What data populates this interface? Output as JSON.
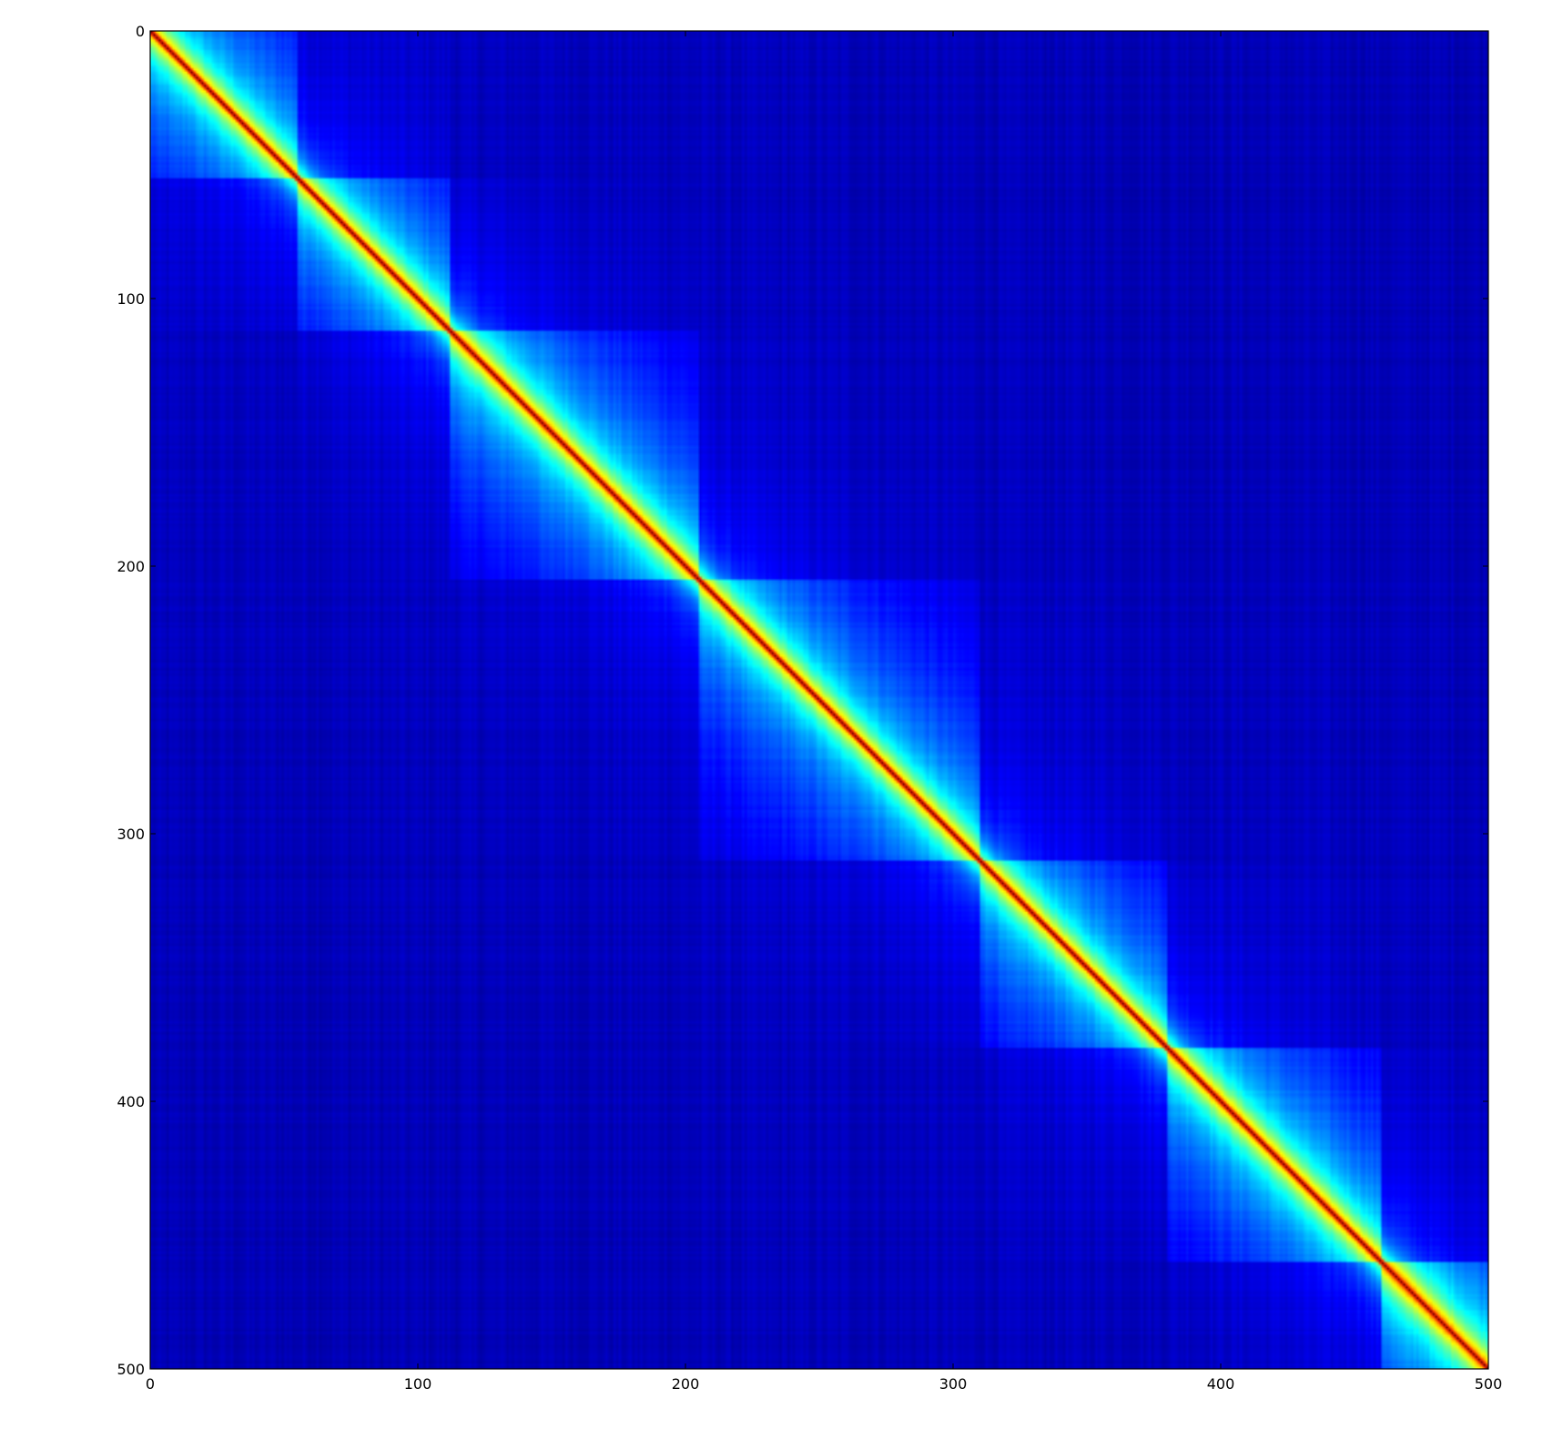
{
  "chart_data": {
    "type": "heatmap",
    "title": "",
    "xlabel": "",
    "ylabel": "",
    "n": 500,
    "xlim": [
      0,
      500
    ],
    "ylim": [
      500,
      0
    ],
    "x_ticks": [
      0,
      100,
      200,
      300,
      400,
      500
    ],
    "y_ticks": [
      0,
      100,
      200,
      300,
      400,
      500
    ],
    "x_tick_labels": [
      "0",
      "100",
      "200",
      "300",
      "400",
      "500"
    ],
    "y_tick_labels": [
      "0",
      "100",
      "200",
      "300",
      "400",
      "500"
    ],
    "colormap": "jet",
    "grid": false,
    "colorbar": false,
    "diagonal_value": 1.0,
    "background_value": 0.05,
    "blocks": [
      {
        "start": 0,
        "end": 55,
        "value": 0.3
      },
      {
        "start": 55,
        "end": 112,
        "value": 0.3
      },
      {
        "start": 112,
        "end": 205,
        "value": 0.32
      },
      {
        "start": 205,
        "end": 310,
        "value": 0.3
      },
      {
        "start": 310,
        "end": 380,
        "value": 0.3
      },
      {
        "start": 380,
        "end": 460,
        "value": 0.32
      },
      {
        "start": 460,
        "end": 500,
        "value": 0.35
      }
    ]
  }
}
